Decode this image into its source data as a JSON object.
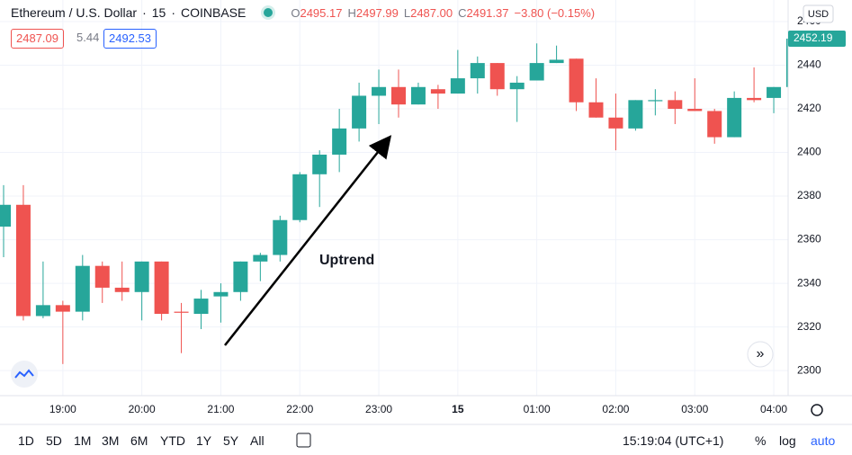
{
  "header": {
    "symbol": "Ethereum / U.S. Dollar",
    "interval": "15",
    "exchange": "COINBASE",
    "ohlc": [
      {
        "label": "O",
        "value": "2495.17"
      },
      {
        "label": "H",
        "value": "2497.99"
      },
      {
        "label": "L",
        "value": "2487.00"
      },
      {
        "label": "C",
        "value": "2491.37"
      }
    ],
    "change": "−3.80 (−0.15%)",
    "bid": "2487.09",
    "spread": "5.44",
    "ask": "2492.53"
  },
  "chart_data": {
    "type": "candlestick",
    "currency": "USD",
    "annotation": "Uptrend",
    "up_color": "#26a69a",
    "down_color": "#ef5350",
    "grid": true,
    "categories": [
      null,
      null,
      null,
      "19:00",
      null,
      null,
      null,
      "20:00",
      null,
      null,
      null,
      "21:00",
      null,
      null,
      null,
      "22:00",
      null,
      null,
      null,
      "23:00",
      null,
      null,
      null,
      "15",
      null,
      null,
      null,
      "01:00",
      null,
      null,
      null,
      "02:00",
      null,
      null,
      null,
      "03:00",
      null,
      null,
      null,
      "04:00",
      null
    ],
    "open": [
      2366,
      2376,
      2325,
      2330,
      2327,
      2348,
      2338,
      2336,
      2350,
      2327,
      2326,
      2334,
      2336,
      2350,
      2353,
      2369,
      2390,
      2399,
      2411,
      2426,
      2430,
      2422,
      2429,
      2427,
      2434,
      2441,
      2429,
      2433,
      2441,
      2443,
      2423,
      2416,
      2411,
      2423.5,
      2424,
      2420,
      2419,
      2407,
      2425,
      2425,
      2430
    ],
    "high": [
      2385,
      2385,
      2350,
      2332,
      2353,
      2350,
      2350,
      2350,
      2350,
      2331,
      2337,
      2340,
      2350,
      2354,
      2371,
      2391,
      2401,
      2420,
      2432,
      2438,
      2438,
      2432,
      2431,
      2447,
      2444,
      2441,
      2435,
      2450,
      2449,
      2443,
      2434,
      2427,
      2424,
      2429,
      2428,
      2434,
      2420,
      2428,
      2439,
      2430,
      2455
    ],
    "low": [
      2352,
      2323,
      2324,
      2303,
      2323,
      2331,
      2332,
      2323,
      2323,
      2308,
      2319,
      2322,
      2332,
      2341,
      2350,
      2368,
      2375,
      2391,
      2405,
      2413,
      2416,
      2422,
      2420,
      2427,
      2427,
      2426,
      2414,
      2433,
      2441,
      2419,
      2416,
      2401,
      2410,
      2417,
      2413,
      2419,
      2404,
      2407,
      2423,
      2418,
      2430
    ],
    "close": [
      2376,
      2325,
      2330,
      2327,
      2348,
      2338,
      2336,
      2350,
      2326,
      2326.5,
      2333,
      2336,
      2350,
      2353,
      2369,
      2390,
      2399,
      2411,
      2426,
      2430,
      2422,
      2430,
      2427,
      2434,
      2441,
      2429,
      2432,
      2441,
      2442.5,
      2423,
      2416,
      2411,
      2424,
      2424,
      2420,
      2419,
      2407,
      2425,
      2424,
      2430,
      2452.19
    ],
    "ylim": [
      2288.5,
      2469.9
    ],
    "yticks": [
      2300,
      2320,
      2340,
      2360,
      2380,
      2400,
      2420,
      2440,
      2460
    ]
  },
  "toolbar": {
    "ranges": [
      "1D",
      "5D",
      "1M",
      "3M",
      "6M",
      "YTD",
      "1Y",
      "5Y",
      "All"
    ],
    "time": "15:19:04 (UTC+1)",
    "percent": "%",
    "log": "log",
    "auto": "auto"
  }
}
